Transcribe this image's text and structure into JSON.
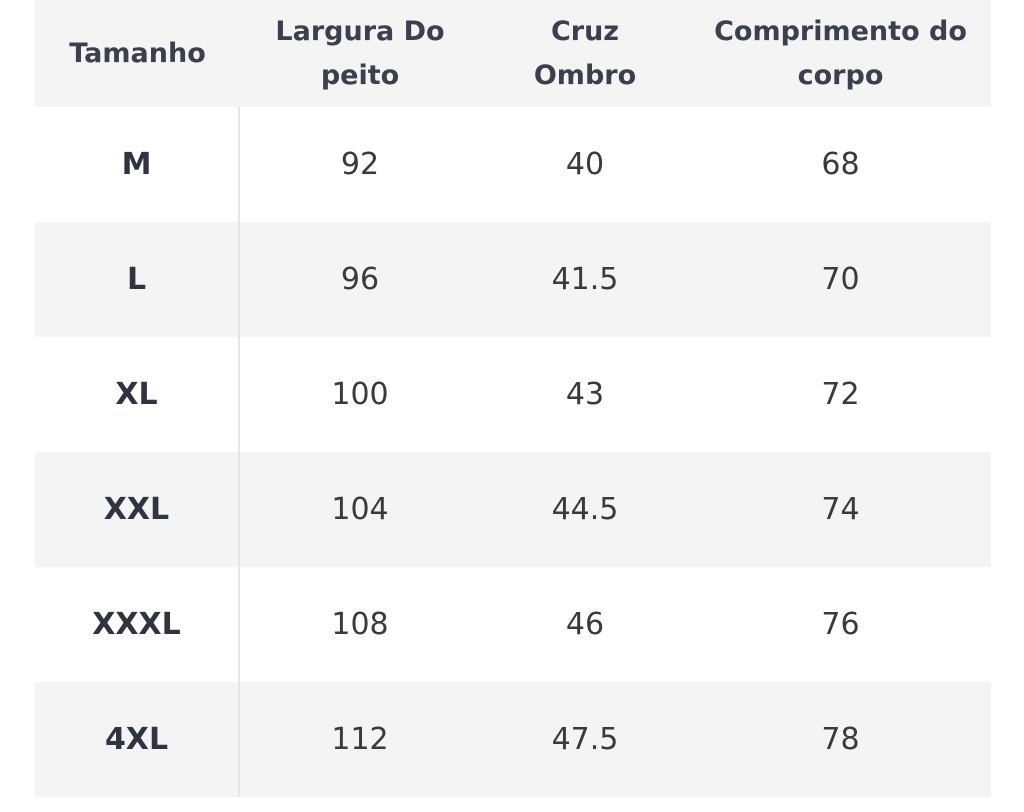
{
  "table": {
    "header": [
      [
        "Tamanho"
      ],
      [
        "Largura Do",
        "peito"
      ],
      [
        "Cruz",
        "Ombro"
      ],
      [
        "Comprimento do",
        "corpo"
      ]
    ],
    "rows": [
      [
        "M",
        "92",
        "40",
        "68"
      ],
      [
        "L",
        "96",
        "41.5",
        "70"
      ],
      [
        "XL",
        "100",
        "43",
        "72"
      ],
      [
        "XXL",
        "104",
        "44.5",
        "74"
      ],
      [
        "XXXL",
        "108",
        "46",
        "76"
      ],
      [
        "4XL",
        "112",
        "47.5",
        "78"
      ]
    ]
  }
}
